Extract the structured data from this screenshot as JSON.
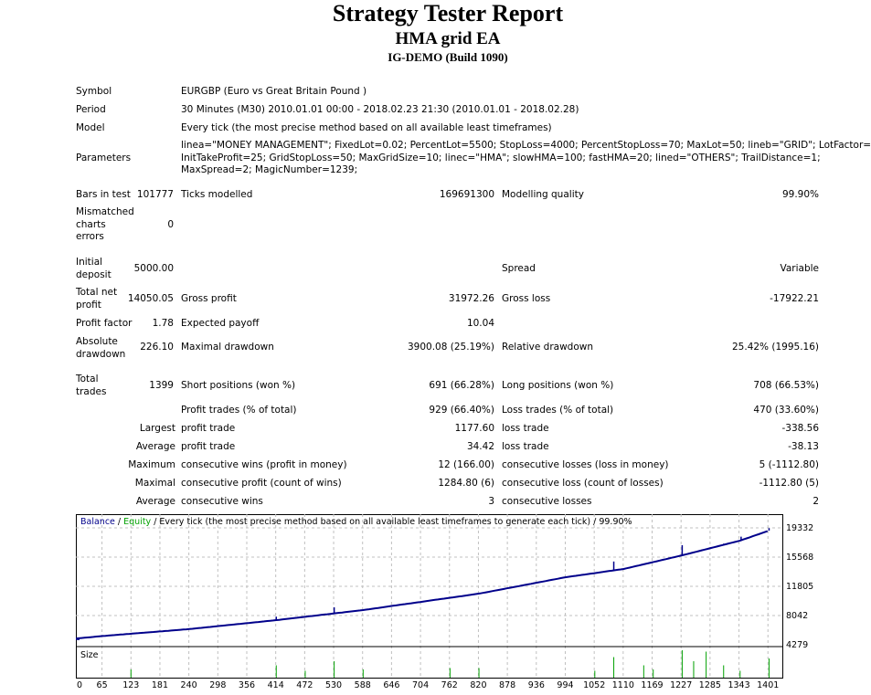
{
  "header": {
    "title": "Strategy Tester Report",
    "ea": "HMA grid EA",
    "server": "IG-DEMO (Build 1090)"
  },
  "info": {
    "symbol_label": "Symbol",
    "symbol": "EURGBP (Euro vs Great Britain Pound )",
    "period_label": "Period",
    "period": "30 Minutes (M30) 2010.01.01 00:00 - 2018.02.23 21:30 (2010.01.01 - 2018.02.28)",
    "model_label": "Model",
    "model": "Every tick (the most precise method based on all available least timeframes)",
    "params_label": "Parameters",
    "params": [
      "linea=\"MONEY MANAGEMENT\"; FixedLot=0.02; PercentLot=5500; StopLoss=4000; PercentStopLoss=70; MaxLot=50; lineb=\"GRID\"; LotFactor=2;",
      "InitTakeProfit=25; GridStopLoss=50; MaxGridSize=10; linec=\"HMA\"; slowHMA=100; fastHMA=20; lined=\"OTHERS\"; TrailDistance=1;",
      "MaxSpread=2; MagicNumber=1239;"
    ]
  },
  "stats": {
    "bars_label": "Bars in test",
    "bars": "101777",
    "ticks_label": "Ticks modelled",
    "ticks": "169691300",
    "quality_label": "Modelling quality",
    "quality": "99.90%",
    "mismatch_label": [
      "Mismatched",
      "charts",
      "errors"
    ],
    "mismatch": "0",
    "deposit_label": [
      "Initial",
      "deposit"
    ],
    "deposit": "5000.00",
    "spread_label": "Spread",
    "spread": "Variable",
    "netprofit_label": [
      "Total net",
      "profit"
    ],
    "netprofit": "14050.05",
    "grossprofit_label": "Gross profit",
    "grossprofit": "31972.26",
    "grossloss_label": "Gross loss",
    "grossloss": "-17922.21",
    "pf_label": "Profit factor",
    "pf": "1.78",
    "payoff_label": "Expected payoff",
    "payoff": "10.04",
    "absdd_label": [
      "Absolute",
      "drawdown"
    ],
    "absdd": "226.10",
    "maxdd_label": "Maximal drawdown",
    "maxdd": "3900.08 (25.19%)",
    "reldd_label": "Relative drawdown",
    "reldd": "25.42% (1995.16)",
    "trades_label": [
      "Total",
      "trades"
    ],
    "trades": "1399",
    "short_label": "Short positions (won %)",
    "short": "691 (66.28%)",
    "long_label": "Long positions (won %)",
    "long": "708 (66.53%)",
    "rows": [
      {
        "a": "",
        "b": "Profit trades (% of total)",
        "c": "929 (66.40%)",
        "d": "Loss trades (% of total)",
        "e": "470 (33.60%)"
      },
      {
        "a": "Largest",
        "b": "profit trade",
        "c": "1177.60",
        "d": "loss trade",
        "e": "-338.56"
      },
      {
        "a": "Average",
        "b": "profit trade",
        "c": "34.42",
        "d": "loss trade",
        "e": "-38.13"
      },
      {
        "a": "Maximum",
        "b": "consecutive wins (profit in money)",
        "c": "12 (166.00)",
        "d": "consecutive losses (loss in money)",
        "e": "5 (-1112.80)"
      },
      {
        "a": "Maximal",
        "b": "consecutive profit (count of wins)",
        "c": "1284.80 (6)",
        "d": "consecutive loss (count of losses)",
        "e": "-1112.80 (5)"
      },
      {
        "a": "Average",
        "b": "consecutive wins",
        "c": "3",
        "d": "consecutive losses",
        "e": "2"
      }
    ]
  },
  "chart_data": {
    "type": "line",
    "legend": {
      "balance": "Balance",
      "sep1": " / ",
      "equity": "Equity",
      "rest": " / Every tick (the most precise method based on all available least timeframes to generate each tick) / 99.90%"
    },
    "size_label": "Size",
    "y_ticks": [
      "19332",
      "15568",
      "11805",
      "8042",
      "4279"
    ],
    "ylim": [
      4279,
      19332
    ],
    "x_ticks": [
      "0",
      "65",
      "123",
      "181",
      "240",
      "298",
      "356",
      "414",
      "472",
      "530",
      "588",
      "646",
      "704",
      "762",
      "820",
      "878",
      "936",
      "994",
      "1052",
      "1110",
      "1169",
      "1227",
      "1285",
      "1343",
      "1401"
    ],
    "balance": [
      [
        0,
        5000
      ],
      [
        65,
        5400
      ],
      [
        240,
        6300
      ],
      [
        414,
        7450
      ],
      [
        588,
        8750
      ],
      [
        820,
        10860
      ],
      [
        994,
        12980
      ],
      [
        1110,
        14040
      ],
      [
        1227,
        15800
      ],
      [
        1343,
        17690
      ],
      [
        1401,
        18980
      ]
    ],
    "equity_spikes": [
      [
        414,
        7900
      ],
      [
        530,
        9100
      ],
      [
        1090,
        15000
      ],
      [
        1227,
        17100
      ],
      [
        1310,
        17300
      ],
      [
        1345,
        18200
      ],
      [
        1401,
        19300
      ]
    ],
    "size_bars": [
      [
        123,
        0.3
      ],
      [
        414,
        0.45
      ],
      [
        472,
        0.25
      ],
      [
        530,
        0.6
      ],
      [
        588,
        0.3
      ],
      [
        762,
        0.35
      ],
      [
        820,
        0.35
      ],
      [
        1052,
        0.25
      ],
      [
        1090,
        0.75
      ],
      [
        1150,
        0.45
      ],
      [
        1169,
        0.3
      ],
      [
        1227,
        1.0
      ],
      [
        1250,
        0.6
      ],
      [
        1275,
        0.95
      ],
      [
        1310,
        0.45
      ],
      [
        1343,
        0.25
      ],
      [
        1401,
        0.7
      ]
    ],
    "colors": {
      "balance": "#00008b",
      "equity": "#00a000",
      "grid": "#c0c0c0"
    }
  }
}
